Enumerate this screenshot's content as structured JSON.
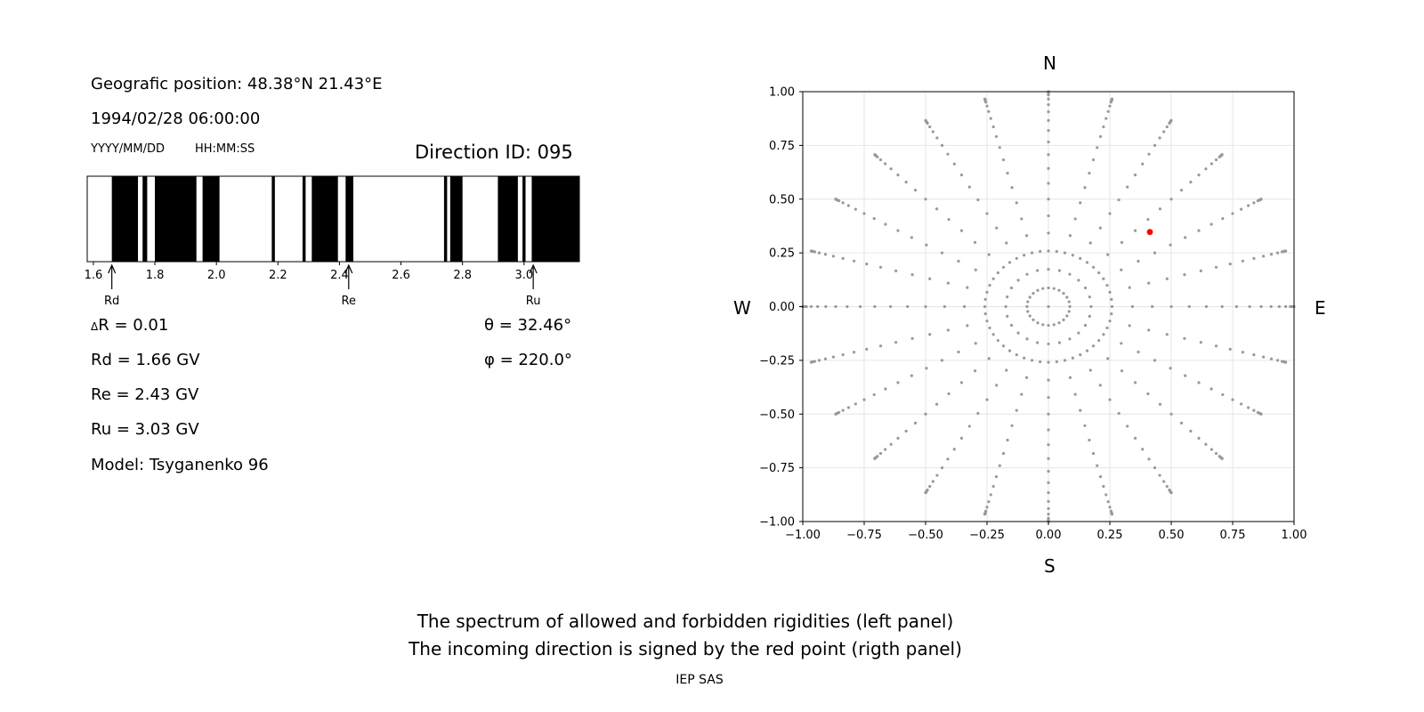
{
  "info": {
    "geo_position": "Geografic position: 48.38°N 21.43°E",
    "datetime": "1994/02/28 06:00:00",
    "date_format": "YYYY/MM/DD",
    "time_format": "HH:MM:SS",
    "direction_id": "Direction ID: 095"
  },
  "params": {
    "delta_r": "R = 0.01",
    "delta_symbol": "Δ",
    "rd": "Rd = 1.66 GV",
    "re": "Re = 2.43 GV",
    "ru": "Ru = 3.03 GV",
    "model": "Model: Tsyganenko 96",
    "theta": "θ = 32.46°",
    "phi": "φ = 220.0°"
  },
  "compass": {
    "north": "N",
    "south": "S",
    "west": "W",
    "east": "E"
  },
  "caption": {
    "line1": "The spectrum of allowed and forbidden rigidities (left panel)",
    "line2": "The incoming direction is signed by the red point (rigth panel)",
    "footer": "IEP SAS"
  },
  "chart_data": [
    {
      "type": "bar",
      "name_hint": "rigidity spectrum",
      "x_range": [
        1.58,
        3.18
      ],
      "x_ticks": [
        1.6,
        1.8,
        2.0,
        2.2,
        2.4,
        2.6,
        2.8,
        3.0
      ],
      "forbidden_bands": [
        [
          1.66,
          1.745
        ],
        [
          1.76,
          1.775
        ],
        [
          1.8,
          1.935
        ],
        [
          1.955,
          2.01
        ],
        [
          2.18,
          2.19
        ],
        [
          2.28,
          2.29
        ],
        [
          2.31,
          2.395
        ],
        [
          2.42,
          2.445
        ],
        [
          2.74,
          2.75
        ],
        [
          2.76,
          2.8
        ],
        [
          2.915,
          2.98
        ],
        [
          2.995,
          3.005
        ],
        [
          3.025,
          3.18
        ]
      ],
      "markers": [
        {
          "label": "Rd",
          "x": 1.66
        },
        {
          "label": "Re",
          "x": 2.43
        },
        {
          "label": "Ru",
          "x": 3.03
        }
      ],
      "colors": {
        "forbidden": "#000000",
        "allowed": "#ffffff"
      }
    },
    {
      "type": "scatter",
      "xlim": [
        -1,
        1
      ],
      "ylim": [
        -1,
        1
      ],
      "x_ticks": [
        "−1.00",
        "−0.75",
        "−0.50",
        "−0.25",
        "0.00",
        "0.25",
        "0.50",
        "0.75",
        "1.00"
      ],
      "y_ticks": [
        "1.00",
        "0.75",
        "0.50",
        "0.25",
        "0.00",
        "−0.25",
        "−0.50",
        "−0.75",
        "−1.00"
      ],
      "tick_values": [
        -1,
        -0.75,
        -0.5,
        -0.25,
        0,
        0.25,
        0.5,
        0.75,
        1
      ],
      "grid": true,
      "grid_polar": {
        "azimuth_step_deg": 15,
        "zenith_step_deg": 5,
        "zenith_max_deg": 90,
        "extra_zenith_deg": [
          82.5,
          85,
          87.5
        ]
      },
      "highlight_point": {
        "x": 0.413,
        "y": 0.347
      },
      "colors": {
        "points": "#999999",
        "highlight": "#ff0000",
        "grid": "#e6e6e6"
      }
    }
  ]
}
